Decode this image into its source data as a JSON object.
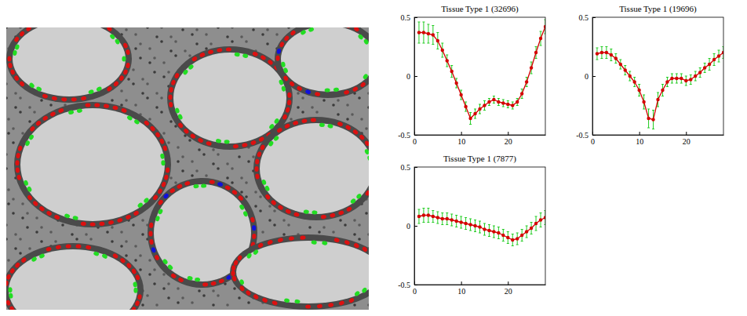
{
  "chart_data": [
    {
      "type": "line",
      "title": "Tissue Type 1 (32696)",
      "x": [
        1,
        2,
        3,
        4,
        5,
        6,
        7,
        8,
        9,
        10,
        11,
        12,
        13,
        14,
        15,
        16,
        17,
        18,
        19,
        20,
        21,
        22,
        23,
        24,
        25,
        26,
        27,
        28
      ],
      "xlim": [
        0,
        28
      ],
      "xticks": [
        0,
        10,
        20
      ],
      "ylim": [
        -0.5,
        0.5
      ],
      "yticks": [
        -0.5,
        0,
        0.5
      ],
      "series": [
        {
          "color": "#d40000",
          "marker": "dot",
          "values": [
            0.37,
            0.37,
            0.36,
            0.35,
            0.3,
            0.22,
            0.13,
            0.04,
            -0.06,
            -0.16,
            -0.26,
            -0.36,
            -0.32,
            -0.28,
            -0.25,
            -0.22,
            -0.2,
            -0.22,
            -0.23,
            -0.24,
            -0.25,
            -0.22,
            -0.15,
            -0.05,
            0.07,
            0.2,
            0.32,
            0.42
          ],
          "errors": [
            0.09,
            0.09,
            0.08,
            0.08,
            0.07,
            0.06,
            0.05,
            0.05,
            0.04,
            0.04,
            0.04,
            0.05,
            0.04,
            0.04,
            0.04,
            0.03,
            0.03,
            0.03,
            0.03,
            0.03,
            0.03,
            0.03,
            0.04,
            0.04,
            0.05,
            0.05,
            0.06,
            0.06
          ]
        }
      ]
    },
    {
      "type": "line",
      "title": "Tissue Type 1 (19696)",
      "x": [
        1,
        2,
        3,
        4,
        5,
        6,
        7,
        8,
        9,
        10,
        11,
        12,
        13,
        14,
        15,
        16,
        17,
        18,
        19,
        20,
        21,
        22,
        23,
        24,
        25,
        26,
        27,
        28
      ],
      "xlim": [
        0,
        28
      ],
      "xticks": [
        0,
        10,
        20
      ],
      "ylim": [
        -0.5,
        0.5
      ],
      "yticks": [
        -0.5,
        0,
        0.5
      ],
      "series": [
        {
          "color": "#d40000",
          "marker": "dot",
          "values": [
            0.19,
            0.2,
            0.2,
            0.18,
            0.15,
            0.1,
            0.05,
            0.0,
            -0.05,
            -0.12,
            -0.22,
            -0.36,
            -0.37,
            -0.2,
            -0.12,
            -0.05,
            -0.02,
            -0.02,
            -0.02,
            -0.04,
            -0.03,
            0.0,
            0.03,
            0.07,
            0.1,
            0.14,
            0.17,
            0.2
          ],
          "errors": [
            0.05,
            0.05,
            0.05,
            0.05,
            0.04,
            0.04,
            0.04,
            0.04,
            0.04,
            0.05,
            0.06,
            0.08,
            0.08,
            0.06,
            0.05,
            0.04,
            0.04,
            0.04,
            0.04,
            0.04,
            0.04,
            0.04,
            0.04,
            0.04,
            0.05,
            0.05,
            0.05,
            0.05
          ]
        }
      ]
    },
    {
      "type": "line",
      "title": "Tissue Type 1 (7877)",
      "x": [
        1,
        2,
        3,
        4,
        5,
        6,
        7,
        8,
        9,
        10,
        11,
        12,
        13,
        14,
        15,
        16,
        17,
        18,
        19,
        20,
        21,
        22,
        23,
        24,
        25,
        26,
        27,
        28
      ],
      "xlim": [
        0,
        28
      ],
      "xticks": [
        0,
        10,
        20
      ],
      "ylim": [
        -0.5,
        0.5
      ],
      "yticks": [
        -0.5,
        0,
        0.5
      ],
      "series": [
        {
          "color": "#d40000",
          "marker": "dot",
          "values": [
            0.08,
            0.09,
            0.09,
            0.08,
            0.07,
            0.06,
            0.06,
            0.05,
            0.04,
            0.03,
            0.02,
            0.01,
            0.0,
            -0.01,
            -0.03,
            -0.04,
            -0.05,
            -0.06,
            -0.08,
            -0.1,
            -0.12,
            -0.11,
            -0.08,
            -0.05,
            -0.02,
            0.02,
            0.05,
            0.07
          ],
          "errors": [
            0.06,
            0.06,
            0.06,
            0.05,
            0.05,
            0.05,
            0.05,
            0.05,
            0.05,
            0.05,
            0.05,
            0.05,
            0.05,
            0.05,
            0.05,
            0.05,
            0.05,
            0.05,
            0.05,
            0.05,
            0.05,
            0.05,
            0.05,
            0.05,
            0.05,
            0.06,
            0.06,
            0.06
          ]
        }
      ]
    }
  ]
}
